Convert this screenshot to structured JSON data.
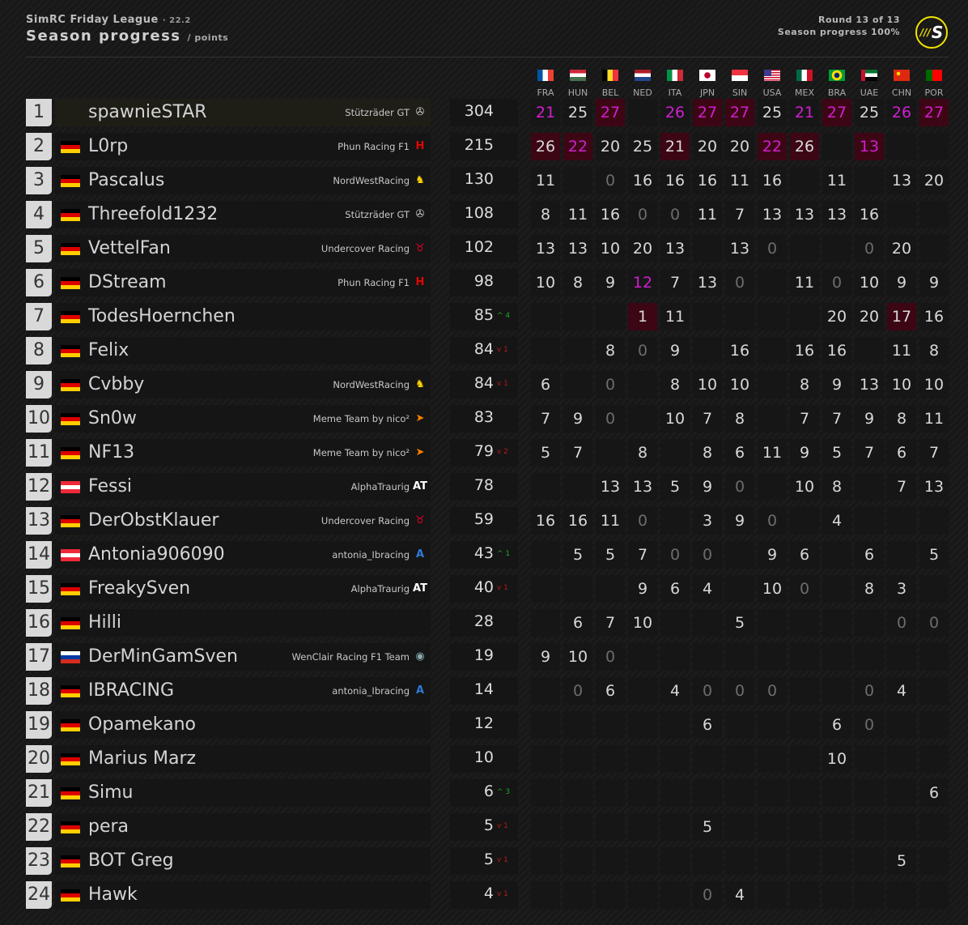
{
  "header": {
    "league": "SimRC Friday League",
    "version": "· 22.2",
    "title": "Season progress",
    "unit": "/ points",
    "round": "Round 13 of 13",
    "progress": "Season progress 100%",
    "progress_value": 100,
    "logo": "S"
  },
  "colors": {
    "fastest": "#d21ed2",
    "win_bg": "#3d0614",
    "up": "#1fa51f",
    "down": "#b81818",
    "logo_ring": "#f2e200"
  },
  "races": [
    {
      "code": "FRA",
      "flag": "fr"
    },
    {
      "code": "HUN",
      "flag": "hu"
    },
    {
      "code": "BEL",
      "flag": "be"
    },
    {
      "code": "NED",
      "flag": "nl"
    },
    {
      "code": "ITA",
      "flag": "it"
    },
    {
      "code": "JPN",
      "flag": "jp"
    },
    {
      "code": "SIN",
      "flag": "sg"
    },
    {
      "code": "USA",
      "flag": "us"
    },
    {
      "code": "MEX",
      "flag": "mx"
    },
    {
      "code": "BRA",
      "flag": "br"
    },
    {
      "code": "UAE",
      "flag": "ae"
    },
    {
      "code": "CHN",
      "flag": "cn"
    },
    {
      "code": "POR",
      "flag": "pt"
    }
  ],
  "drivers": [
    {
      "pos": "1",
      "name": "spawnieSTAR",
      "flag": "us",
      "team": "Stützräder GT",
      "logo": "mercedes-icon",
      "points": "304",
      "change": "",
      "results": [
        "21",
        "25",
        "27",
        "",
        "26",
        "27",
        "27",
        "25",
        "21",
        "27",
        "25",
        "26",
        "27"
      ],
      "purple": [
        0,
        2,
        4,
        5,
        6,
        8,
        9,
        11,
        12
      ],
      "win": [
        2,
        5,
        6,
        9,
        12
      ]
    },
    {
      "pos": "2",
      "name": "L0rp",
      "flag": "de",
      "team": "Phun Racing F1",
      "logo": "haas-icon",
      "points": "215",
      "change": "",
      "results": [
        "26",
        "22",
        "20",
        "25",
        "21",
        "20",
        "20",
        "22",
        "26",
        "",
        "13",
        "",
        ""
      ],
      "purple": [
        1,
        7,
        10
      ],
      "win": [
        0,
        1,
        4,
        7,
        8,
        10
      ]
    },
    {
      "pos": "3",
      "name": "Pascalus",
      "flag": "de",
      "team": "NordWestRacing",
      "logo": "ferrari-icon",
      "points": "130",
      "change": "",
      "results": [
        "11",
        "",
        "0",
        "16",
        "16",
        "16",
        "11",
        "16",
        "",
        "11",
        "",
        "13",
        "20"
      ],
      "purple": [],
      "win": []
    },
    {
      "pos": "4",
      "name": "Threefold1232",
      "flag": "de",
      "team": "Stützräder GT",
      "logo": "mercedes-icon",
      "points": "108",
      "change": "",
      "results": [
        "8",
        "11",
        "16",
        "0",
        "0",
        "11",
        "7",
        "13",
        "13",
        "13",
        "16",
        "",
        ""
      ],
      "purple": [],
      "win": []
    },
    {
      "pos": "5",
      "name": "VettelFan",
      "flag": "de",
      "team": "Undercover Racing",
      "logo": "redbull-icon",
      "points": "102",
      "change": "",
      "results": [
        "13",
        "13",
        "10",
        "20",
        "13",
        "",
        "13",
        "0",
        "",
        "",
        "0",
        "20",
        ""
      ],
      "purple": [],
      "win": []
    },
    {
      "pos": "6",
      "name": "DStream",
      "flag": "de",
      "team": "Phun Racing F1",
      "logo": "haas-icon",
      "points": "98",
      "change": "",
      "results": [
        "10",
        "8",
        "9",
        "12",
        "7",
        "13",
        "0",
        "",
        "11",
        "0",
        "10",
        "9",
        "9"
      ],
      "purple": [
        3
      ],
      "win": []
    },
    {
      "pos": "7",
      "name": "TodesHoernchen",
      "flag": "de",
      "team": "",
      "logo": "",
      "points": "85",
      "change": "^4",
      "results": [
        "",
        "",
        "",
        "1",
        "11",
        "",
        "",
        "",
        "",
        "20",
        "20",
        "17",
        "16"
      ],
      "purple": [],
      "win": [
        3,
        11
      ]
    },
    {
      "pos": "8",
      "name": "Felix",
      "flag": "de",
      "team": "",
      "logo": "",
      "points": "84",
      "change": "v1",
      "results": [
        "",
        "",
        "8",
        "0",
        "9",
        "",
        "16",
        "",
        "16",
        "16",
        "",
        "11",
        "8"
      ],
      "purple": [],
      "win": []
    },
    {
      "pos": "9",
      "name": "Cvbby",
      "flag": "de",
      "team": "NordWestRacing",
      "logo": "ferrari-icon",
      "points": "84",
      "change": "v1",
      "results": [
        "6",
        "",
        "0",
        "",
        "8",
        "10",
        "10",
        "",
        "8",
        "9",
        "13",
        "10",
        "10"
      ],
      "purple": [],
      "win": []
    },
    {
      "pos": "10",
      "name": "Sn0w",
      "flag": "de",
      "team": "Meme Team by nico²",
      "logo": "mclaren-icon",
      "points": "83",
      "change": "",
      "results": [
        "7",
        "9",
        "0",
        "",
        "10",
        "7",
        "8",
        "",
        "7",
        "7",
        "9",
        "8",
        "11"
      ],
      "purple": [],
      "win": []
    },
    {
      "pos": "11",
      "name": "NF13",
      "flag": "de",
      "team": "Meme Team by nico²",
      "logo": "mclaren-icon",
      "points": "79",
      "change": "v2",
      "results": [
        "5",
        "7",
        "",
        "8",
        "",
        "8",
        "6",
        "11",
        "9",
        "5",
        "7",
        "6",
        "7"
      ],
      "purple": [],
      "win": []
    },
    {
      "pos": "12",
      "name": "Fessi",
      "flag": "at",
      "team": "AlphaTraurig",
      "logo": "alphatauri-icon",
      "points": "78",
      "change": "",
      "results": [
        "",
        "",
        "13",
        "13",
        "5",
        "9",
        "0",
        "",
        "10",
        "8",
        "",
        "7",
        "13"
      ],
      "purple": [],
      "win": []
    },
    {
      "pos": "13",
      "name": "DerObstKlauer",
      "flag": "de",
      "team": "Undercover Racing",
      "logo": "redbull-icon",
      "points": "59",
      "change": "",
      "results": [
        "16",
        "16",
        "11",
        "0",
        "",
        "3",
        "9",
        "0",
        "",
        "4",
        "",
        "",
        ""
      ],
      "purple": [],
      "win": []
    },
    {
      "pos": "14",
      "name": "Antonia906090",
      "flag": "at",
      "team": "antonia_Ibracing",
      "logo": "alpine-icon",
      "points": "43",
      "change": "^1",
      "results": [
        "",
        "5",
        "5",
        "7",
        "0",
        "0",
        "",
        "9",
        "6",
        "",
        "6",
        "",
        "5"
      ],
      "purple": [],
      "win": []
    },
    {
      "pos": "15",
      "name": "FreakySven",
      "flag": "de",
      "team": "AlphaTraurig",
      "logo": "alphatauri-icon",
      "points": "40",
      "change": "v1",
      "results": [
        "",
        "",
        "",
        "9",
        "6",
        "4",
        "",
        "10",
        "0",
        "",
        "8",
        "3",
        ""
      ],
      "purple": [],
      "win": []
    },
    {
      "pos": "16",
      "name": "Hilli",
      "flag": "de",
      "team": "",
      "logo": "",
      "points": "28",
      "change": "",
      "results": [
        "",
        "6",
        "7",
        "10",
        "",
        "",
        "5",
        "",
        "",
        "",
        "",
        "0",
        "0"
      ],
      "purple": [],
      "win": []
    },
    {
      "pos": "17",
      "name": "DerMinGamSven",
      "flag": "ru",
      "team": "WenClair Racing F1 Team",
      "logo": "alfaromeo-icon",
      "points": "19",
      "change": "",
      "results": [
        "9",
        "10",
        "0",
        "",
        "",
        "",
        "",
        "",
        "",
        "",
        "",
        "",
        ""
      ],
      "purple": [],
      "win": []
    },
    {
      "pos": "18",
      "name": "IBRACING",
      "flag": "de",
      "team": "antonia_Ibracing",
      "logo": "alpine-icon",
      "points": "14",
      "change": "",
      "results": [
        "",
        "0",
        "6",
        "",
        "4",
        "0",
        "0",
        "0",
        "",
        "",
        "0",
        "4",
        ""
      ],
      "purple": [],
      "win": []
    },
    {
      "pos": "19",
      "name": "Opamekano",
      "flag": "de",
      "team": "",
      "logo": "",
      "points": "12",
      "change": "",
      "results": [
        "",
        "",
        "",
        "",
        "",
        "6",
        "",
        "",
        "",
        "6",
        "0",
        "",
        ""
      ],
      "purple": [],
      "win": []
    },
    {
      "pos": "20",
      "name": "Marius Marz",
      "flag": "de",
      "team": "",
      "logo": "",
      "points": "10",
      "change": "",
      "results": [
        "",
        "",
        "",
        "",
        "",
        "",
        "",
        "",
        "",
        "10",
        "",
        "",
        ""
      ],
      "purple": [],
      "win": []
    },
    {
      "pos": "21",
      "name": "Simu",
      "flag": "de",
      "team": "",
      "logo": "",
      "points": "6",
      "change": "^3",
      "results": [
        "",
        "",
        "",
        "",
        "",
        "",
        "",
        "",
        "",
        "",
        "",
        "",
        "6"
      ],
      "purple": [],
      "win": []
    },
    {
      "pos": "22",
      "name": "pera",
      "flag": "de",
      "team": "",
      "logo": "",
      "points": "5",
      "change": "v1",
      "results": [
        "",
        "",
        "",
        "",
        "",
        "5",
        "",
        "",
        "",
        "",
        "",
        "",
        ""
      ],
      "purple": [],
      "win": []
    },
    {
      "pos": "23",
      "name": "BOT Greg",
      "flag": "de",
      "team": "",
      "logo": "",
      "points": "5",
      "change": "v1",
      "results": [
        "",
        "",
        "",
        "",
        "",
        "",
        "",
        "",
        "",
        "",
        "",
        "5",
        ""
      ],
      "purple": [],
      "win": []
    },
    {
      "pos": "24",
      "name": "Hawk",
      "flag": "de",
      "team": "",
      "logo": "",
      "points": "4",
      "change": "v1",
      "results": [
        "",
        "",
        "",
        "",
        "",
        "0",
        "4",
        "",
        "",
        "",
        "",
        "",
        ""
      ],
      "purple": [],
      "win": []
    }
  ]
}
